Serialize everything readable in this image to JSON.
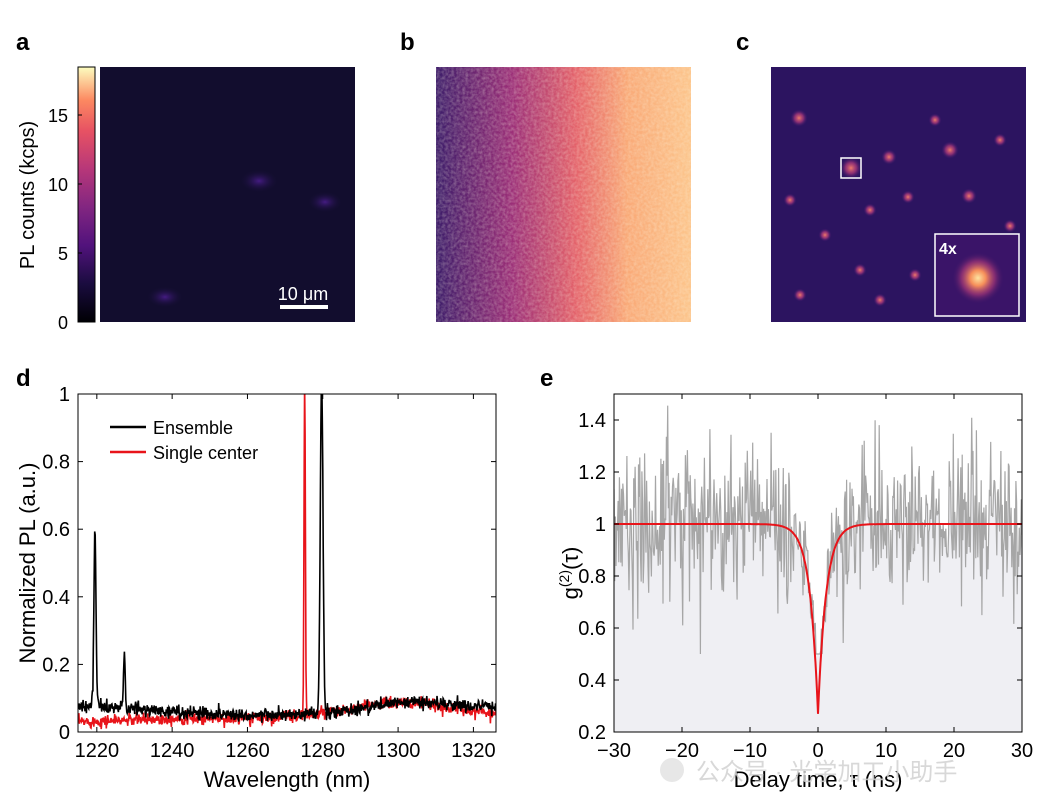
{
  "panels": {
    "a": {
      "label": "a",
      "colorbar_label": "PL counts (kcps)",
      "ticks": [
        "0",
        "5",
        "10",
        "15"
      ],
      "scale_bar": "10 μm"
    },
    "b": {
      "label": "b"
    },
    "c": {
      "label": "c",
      "inset_label": "4x"
    },
    "d": {
      "label": "d"
    },
    "e": {
      "label": "e"
    }
  },
  "watermark": "公众号 · 光学加工小助手",
  "chart_data": [
    {
      "id": "d",
      "type": "line",
      "xlabel": "Wavelength (nm)",
      "ylabel": "Normalized PL (a.u.)",
      "xlim": [
        1215,
        1326
      ],
      "ylim": [
        0,
        1
      ],
      "xticks": [
        1220,
        1240,
        1260,
        1280,
        1300,
        1320
      ],
      "yticks": [
        0,
        0.2,
        0.4,
        0.6,
        0.8,
        1
      ],
      "ytick_labels": [
        "0",
        "0.2",
        "0.4",
        "0.6",
        "0.8",
        "1"
      ],
      "legend": "top-left",
      "series": [
        {
          "name": "Ensemble",
          "color": "#000000",
          "baseline": [
            [
              1215,
              0.08
            ],
            [
              1240,
              0.06
            ],
            [
              1260,
              0.05
            ],
            [
              1275,
              0.05
            ],
            [
              1285,
              0.06
            ],
            [
              1295,
              0.08
            ],
            [
              1305,
              0.09
            ],
            [
              1315,
              0.08
            ],
            [
              1326,
              0.075
            ]
          ],
          "peaks": [
            {
              "x": 1219.5,
              "height": 0.52,
              "width": 0.4
            },
            {
              "x": 1227.3,
              "height": 0.15,
              "width": 0.35
            },
            {
              "x": 1279.7,
              "height": 1.0,
              "width": 0.5
            }
          ],
          "noise": 0.01
        },
        {
          "name": "Single center",
          "color": "#e8141a",
          "baseline": [
            [
              1215,
              0.03
            ],
            [
              1240,
              0.04
            ],
            [
              1260,
              0.04
            ],
            [
              1275,
              0.05
            ],
            [
              1285,
              0.06
            ],
            [
              1295,
              0.085
            ],
            [
              1305,
              0.085
            ],
            [
              1315,
              0.07
            ],
            [
              1326,
              0.055
            ]
          ],
          "peaks": [
            {
              "x": 1275.2,
              "height": 1.0,
              "width": 0.25
            }
          ],
          "noise": 0.009
        }
      ]
    },
    {
      "id": "e",
      "type": "line",
      "xlabel": "Delay time, τ (ns)",
      "ylabel_main": "g",
      "ylabel_sup": "(2)",
      "ylabel_tail": "(τ)",
      "xlim": [
        -30,
        30
      ],
      "ylim": [
        0.2,
        1.5
      ],
      "xticks": [
        -30,
        -20,
        -10,
        0,
        10,
        20,
        30
      ],
      "yticks": [
        0.2,
        0.4,
        0.6,
        0.8,
        1,
        1.2,
        1.4
      ],
      "ytick_labels": [
        "0.2",
        "0.4",
        "0.6",
        "0.8",
        "1",
        "1.2",
        "1.4"
      ],
      "series": [
        {
          "name": "data",
          "color": "#a6a6a6",
          "mean": 1.0,
          "sd": 0.15,
          "dip_min": 0.3,
          "dip_tau": 1.2
        },
        {
          "name": "fit",
          "color": "#e8141a",
          "g2_at_zero": 0.27,
          "tau_ns": 1.2
        }
      ]
    }
  ]
}
